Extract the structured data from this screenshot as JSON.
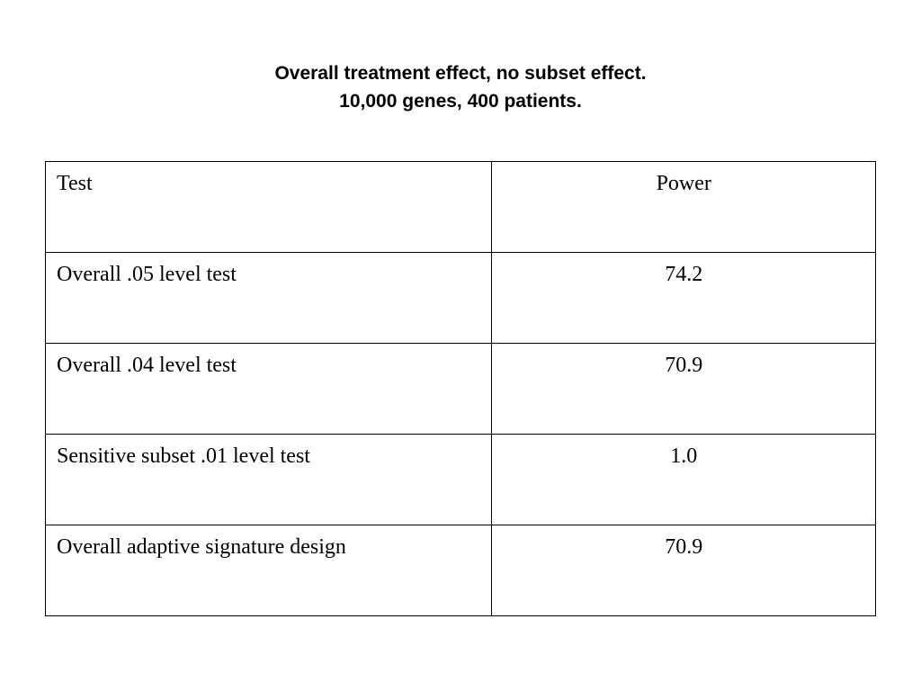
{
  "title": {
    "line1": "Overall treatment effect, no subset effect.",
    "line2": "10,000 genes, 400 patients."
  },
  "table": {
    "headers": [
      "Test",
      "Power"
    ],
    "rows": [
      [
        "Overall .05 level test",
        "74.2"
      ],
      [
        "Overall .04 level test",
        "70.9"
      ],
      [
        "Sensitive subset .01 level test",
        "1.0"
      ],
      [
        "Overall adaptive signature design",
        "70.9"
      ]
    ]
  }
}
